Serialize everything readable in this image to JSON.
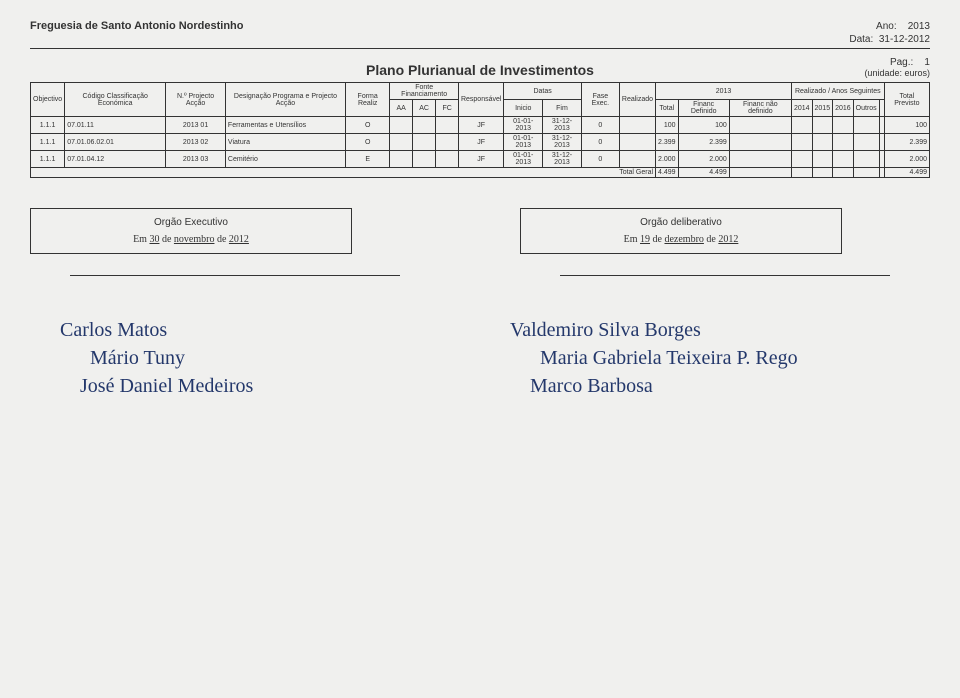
{
  "header": {
    "entity": "Freguesia de Santo Antonio Nordestinho",
    "ano_label": "Ano:",
    "ano_value": "2013",
    "data_label": "Data:",
    "data_value": "31-12-2012",
    "pag_label": "Pag.:",
    "pag_value": "1",
    "unit": "(unidade: euros)"
  },
  "title": "Plano Plurianual de Investimentos",
  "table": {
    "headers": {
      "objectivo": "Objectivo",
      "codigo": "Código Classificação Económica",
      "nprojecto": "N.º Projecto Acção",
      "designacao": "Designação Programa e Projecto Acção",
      "forma": "Forma Realiz",
      "fonte": "Fonte Financiamento",
      "aa": "AA",
      "ac": "AC",
      "fc": "FC",
      "responsavel": "Responsável",
      "datas": "Datas",
      "inicio": "Inicio",
      "fim": "Fim",
      "fase": "Fase Exec.",
      "realizado_h": "Realizado",
      "y2013": "2013",
      "total_sub": "Total",
      "financ_def": "Financ Definido",
      "financ_nao": "Financ não definido",
      "realizado_grp": "Realizado",
      "anos": "Anos Seguintes",
      "y2014": "2014",
      "y2015": "2015",
      "y2016": "2016",
      "outros": "Outros",
      "total_prev": "Total Previsto"
    },
    "rows": [
      {
        "obj": "1.1.1",
        "cod": "07.01.11",
        "np": "2013 01",
        "desig": "Ferramentas e Utensílios",
        "forma": "O",
        "resp": "JF",
        "inicio": "01-01-2013",
        "fim": "31-12-2013",
        "fase": "0",
        "total": "100",
        "fdef": "100",
        "tprev": "100"
      },
      {
        "obj": "1.1.1",
        "cod": "07.01.06.02.01",
        "np": "2013 02",
        "desig": "Viatura",
        "forma": "O",
        "resp": "JF",
        "inicio": "01-01-2013",
        "fim": "31-12-2013",
        "fase": "0",
        "total": "2.399",
        "fdef": "2.399",
        "tprev": "2.399"
      },
      {
        "obj": "1.1.1",
        "cod": "07.01.04.12",
        "np": "2013 03",
        "desig": "Cemitério",
        "forma": "E",
        "resp": "JF",
        "inicio": "01-01-2013",
        "fim": "31-12-2013",
        "fase": "0",
        "total": "2.000",
        "fdef": "2.000",
        "tprev": "2.000"
      }
    ],
    "footer": {
      "label": "Total Geral",
      "total": "4.499",
      "fdef": "4.499",
      "tprev": "4.499"
    }
  },
  "sig": {
    "exec_title": "Orgão Executivo",
    "exec_date_prefix": "Em",
    "exec_day": "30",
    "exec_de1": "de",
    "exec_month": "novembro",
    "exec_de2": "de",
    "exec_year": "2012",
    "delib_title": "Orgão deliberativo",
    "delib_day": "19",
    "delib_month": "dezembro",
    "delib_year": "2012"
  },
  "names": {
    "left1": "Carlos Matos",
    "left2": "Mário Tuny",
    "left3": "José Daniel Medeiros",
    "right1": "Valdemiro Silva Borges",
    "right2": "Maria Gabriela Teixeira P. Rego",
    "right3": "Marco Barbosa"
  }
}
